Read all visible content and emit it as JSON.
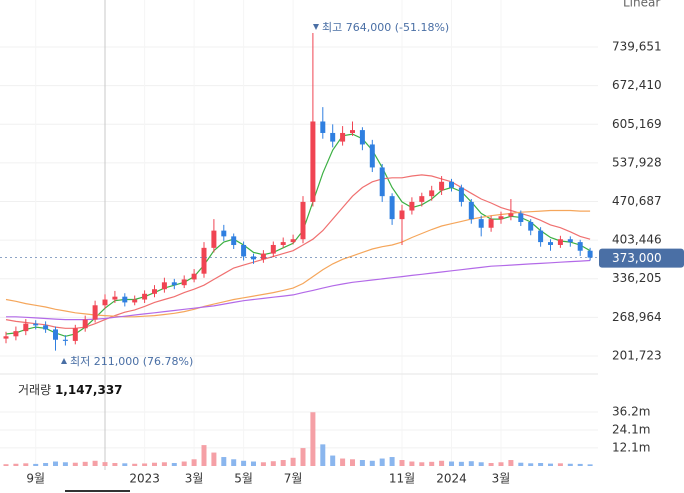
{
  "chart_data": {
    "type": "candlestick",
    "scale_mode": "Linear",
    "categories": [
      null,
      null,
      null,
      "9월",
      null,
      null,
      null,
      null,
      null,
      null,
      null,
      null,
      null,
      null,
      "2023",
      null,
      null,
      null,
      null,
      "3월",
      null,
      null,
      null,
      null,
      "5월",
      null,
      null,
      null,
      null,
      "7월",
      null,
      null,
      null,
      null,
      null,
      null,
      null,
      null,
      null,
      null,
      "11월",
      null,
      null,
      null,
      null,
      "2024",
      null,
      null,
      null,
      null,
      "3월",
      null,
      null,
      null,
      null,
      null,
      null,
      null,
      null,
      null
    ],
    "open": [
      232000,
      236000,
      245000,
      258000,
      255000,
      248000,
      230000,
      228000,
      250000,
      265000,
      290000,
      300000,
      305000,
      295000,
      300000,
      310000,
      318000,
      330000,
      325000,
      335000,
      345000,
      390000,
      420000,
      410000,
      395000,
      375000,
      370000,
      380000,
      395000,
      400000,
      405000,
      470000,
      610000,
      590000,
      575000,
      590000,
      595000,
      570000,
      530000,
      480000,
      440000,
      455000,
      470000,
      480000,
      490000,
      505000,
      495000,
      470000,
      440000,
      425000,
      440000,
      445000,
      450000,
      435000,
      420000,
      400000,
      395000,
      405000,
      400000,
      385000
    ],
    "high": [
      244000,
      253000,
      266000,
      264000,
      262000,
      253000,
      238000,
      256000,
      272000,
      298000,
      309000,
      315000,
      311000,
      307000,
      316000,
      325000,
      338000,
      336000,
      342000,
      353000,
      400000,
      440000,
      430000,
      415000,
      401000,
      380000,
      386000,
      401000,
      408000,
      413000,
      480000,
      764000,
      635000,
      605000,
      602000,
      610000,
      600000,
      578000,
      536000,
      485000,
      465000,
      478000,
      486000,
      498000,
      515000,
      510000,
      500000,
      475000,
      446000,
      446000,
      453000,
      475000,
      455000,
      440000,
      426000,
      405000,
      411000,
      410000,
      404000,
      390000
    ],
    "low": [
      224000,
      229000,
      238000,
      248000,
      242000,
      211000,
      220000,
      222000,
      244000,
      260000,
      284000,
      294000,
      288000,
      290000,
      294000,
      304000,
      312000,
      318000,
      320000,
      330000,
      338000,
      382000,
      402000,
      388000,
      368000,
      362000,
      364000,
      374000,
      390000,
      396000,
      398000,
      462000,
      580000,
      565000,
      568000,
      585000,
      560000,
      522000,
      470000,
      430000,
      395000,
      448000,
      462000,
      472000,
      482000,
      488000,
      462000,
      432000,
      410000,
      418000,
      432000,
      438000,
      428000,
      412000,
      392000,
      385000,
      390000,
      392000,
      376000,
      368000
    ],
    "close": [
      236000,
      245000,
      258000,
      255000,
      248000,
      230000,
      228000,
      250000,
      265000,
      290000,
      300000,
      305000,
      295000,
      300000,
      310000,
      318000,
      330000,
      325000,
      335000,
      345000,
      390000,
      420000,
      410000,
      395000,
      375000,
      370000,
      380000,
      395000,
      400000,
      405000,
      470000,
      610000,
      590000,
      575000,
      590000,
      595000,
      570000,
      530000,
      480000,
      440000,
      455000,
      470000,
      480000,
      490000,
      505000,
      495000,
      470000,
      440000,
      425000,
      440000,
      445000,
      450000,
      435000,
      420000,
      400000,
      395000,
      405000,
      400000,
      385000,
      373000
    ],
    "up_color": "#f04452",
    "down_color": "#2f7fe0",
    "moving_averages": [
      {
        "color": "#3cb043",
        "values": [
          240000,
          242000,
          248000,
          252000,
          250000,
          242000,
          236000,
          240000,
          252000,
          268000,
          285000,
          298000,
          300000,
          300000,
          305000,
          312000,
          320000,
          325000,
          330000,
          340000,
          360000,
          385000,
          400000,
          405000,
          395000,
          382000,
          378000,
          382000,
          390000,
          398000,
          420000,
          470000,
          520000,
          560000,
          585000,
          588000,
          580000,
          560000,
          530000,
          495000,
          470000,
          460000,
          465000,
          475000,
          490000,
          495000,
          488000,
          470000,
          450000,
          440000,
          440000,
          445000,
          443000,
          435000,
          420000,
          408000,
          402000,
          400000,
          395000,
          385000
        ]
      },
      {
        "color": "#f07070",
        "values": [
          265000,
          262000,
          260000,
          258000,
          256000,
          252000,
          250000,
          250000,
          252000,
          258000,
          265000,
          272000,
          278000,
          282000,
          288000,
          295000,
          300000,
          305000,
          312000,
          318000,
          325000,
          335000,
          345000,
          355000,
          360000,
          365000,
          370000,
          375000,
          380000,
          385000,
          395000,
          405000,
          420000,
          440000,
          460000,
          480000,
          495000,
          505000,
          510000,
          512000,
          512000,
          515000,
          517000,
          515000,
          510000,
          505000,
          495000,
          485000,
          475000,
          468000,
          460000,
          455000,
          450000,
          445000,
          438000,
          430000,
          425000,
          418000,
          410000,
          405000
        ]
      },
      {
        "color": "#f5a65b",
        "values": [
          300000,
          297000,
          293000,
          290000,
          287000,
          283000,
          280000,
          277000,
          275000,
          273000,
          272000,
          271000,
          270000,
          270000,
          271000,
          272000,
          274000,
          276000,
          279000,
          283000,
          288000,
          292000,
          296000,
          300000,
          303000,
          306000,
          309000,
          312000,
          316000,
          320000,
          328000,
          340000,
          352000,
          362000,
          370000,
          376000,
          382000,
          388000,
          392000,
          395000,
          400000,
          408000,
          415000,
          422000,
          428000,
          432000,
          436000,
          440000,
          443000,
          446000,
          448000,
          450000,
          452000,
          453000,
          454000,
          455000,
          455000,
          455000,
          454000,
          454000
        ]
      },
      {
        "color": "#b36ae8",
        "values": [
          270000,
          270000,
          269000,
          268000,
          267000,
          266000,
          265000,
          265000,
          265000,
          266000,
          267000,
          269000,
          271000,
          273000,
          275000,
          277000,
          279000,
          281000,
          283000,
          285000,
          287000,
          289000,
          292000,
          295000,
          298000,
          300000,
          302000,
          304000,
          306000,
          308000,
          312000,
          316000,
          320000,
          324000,
          327000,
          330000,
          332000,
          334000,
          336000,
          338000,
          340000,
          342000,
          344000,
          346000,
          348000,
          350000,
          352000,
          354000,
          356000,
          358000,
          359000,
          360000,
          361000,
          362000,
          363000,
          364000,
          365000,
          366000,
          367000,
          368000
        ]
      }
    ],
    "ylim": [
      173850,
      821500
    ],
    "yticks": [
      {
        "value": 201723,
        "label": "201,723"
      },
      {
        "value": 268964,
        "label": "268,964"
      },
      {
        "value": 336205,
        "label": "336,205"
      },
      {
        "value": 403446,
        "label": "403,446"
      },
      {
        "value": 470687,
        "label": "470,687"
      },
      {
        "value": 537928,
        "label": "537,928"
      },
      {
        "value": 605169,
        "label": "605,169"
      },
      {
        "value": 672410,
        "label": "672,410"
      },
      {
        "value": 739651,
        "label": "739,651"
      }
    ],
    "last_price": {
      "value": 373000,
      "label": "373,000"
    },
    "last_price_color": "#4a6fa5",
    "high_annotation": "최고 764,000 (-51.18%)",
    "low_annotation": "최저 211,000 (76.78%)",
    "grid": true,
    "volume": {
      "title": "거래량",
      "current": "1,147,337",
      "values": [
        1200000,
        1500000,
        1800000,
        1400000,
        2000000,
        3000000,
        2500000,
        2200000,
        2800000,
        3500000,
        2600000,
        2000000,
        1800000,
        1500000,
        1700000,
        2200000,
        2500000,
        2000000,
        3000000,
        4500000,
        14000000,
        9000000,
        6000000,
        4500000,
        3500000,
        3000000,
        2500000,
        3200000,
        4000000,
        5500000,
        12000000,
        36000000,
        14500000,
        7000000,
        5000000,
        4500000,
        4000000,
        3500000,
        5000000,
        6000000,
        4000000,
        3000000,
        2500000,
        2800000,
        3500000,
        3000000,
        2800000,
        3200000,
        2500000,
        2000000,
        2500000,
        4000000,
        2200000,
        1800000,
        2000000,
        1600000,
        1800000,
        1500000,
        1400000,
        1100000
      ],
      "up_color": "#f5a0a6",
      "down_color": "#8ab6ee",
      "ylim": [
        0,
        57600000
      ],
      "yticks": [
        {
          "value": 12100000,
          "label": "12.1m"
        },
        {
          "value": 24100000,
          "label": "24.1m"
        },
        {
          "value": 36200000,
          "label": "36.2m"
        }
      ]
    }
  }
}
